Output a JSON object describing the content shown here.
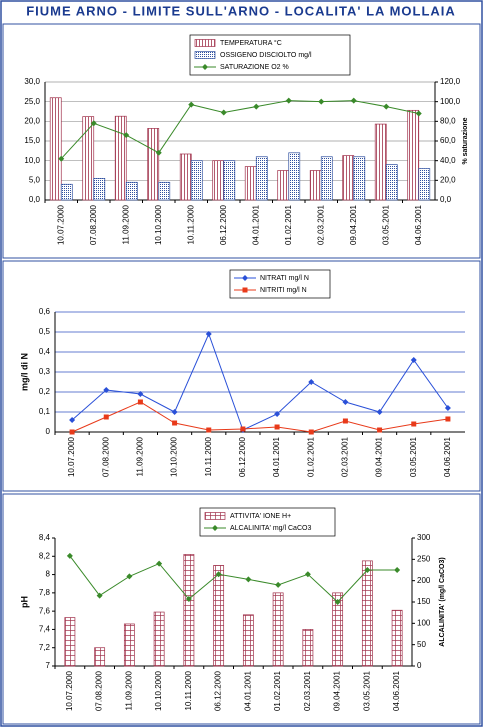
{
  "title": "FIUME ARNO - LIMITE SULL'ARNO - LOCALITA' LA MOLLAIA",
  "chart_data": [
    {
      "type": "combo",
      "categories": [
        "10.07.2000",
        "07.08.2000",
        "11.09.2000",
        "10.10.2000",
        "10.11.2000",
        "06.12.2000",
        "04.01.2001",
        "01.02.2001",
        "02.03.2001",
        "09.04.2001",
        "03.05.2001",
        "04.06.2001"
      ],
      "series": [
        {
          "name": "TEMPERATURA  °C",
          "type": "bar",
          "pattern": "hatch",
          "color": "#a0304a",
          "values": [
            26,
            21.2,
            21.3,
            18.2,
            11.7,
            10,
            8.5,
            7.5,
            7.5,
            11.3,
            19.3,
            22.8
          ]
        },
        {
          "name": "OSSIGENO DISCIOLTO  mg/l",
          "type": "bar",
          "pattern": "dots",
          "color": "#3050a0",
          "values": [
            4,
            5.5,
            4.5,
            4.5,
            10,
            10,
            11,
            12,
            11,
            11,
            9,
            8
          ]
        },
        {
          "name": "SATURAZIONE O2  %",
          "type": "line",
          "marker": "diamond",
          "color": "#3a8a2a",
          "axis": "y2",
          "values": [
            42,
            78,
            66,
            48,
            97,
            89,
            95,
            101,
            100,
            101,
            95,
            88
          ]
        }
      ],
      "ylim": [
        0,
        30
      ],
      "yticks": [
        {
          "value": 0,
          "label": "0,0"
        },
        {
          "value": 5,
          "label": "5,0"
        },
        {
          "value": 10,
          "label": "10,0"
        },
        {
          "value": 15,
          "label": "15,0"
        },
        {
          "value": 20,
          "label": "20,0"
        },
        {
          "value": 25,
          "label": "25,0"
        },
        {
          "value": 30,
          "label": "30,0"
        }
      ],
      "y2lim": [
        0,
        120
      ],
      "y2ticks": [
        {
          "value": 0,
          "label": "0,0"
        },
        {
          "value": 20,
          "label": "20,0"
        },
        {
          "value": 40,
          "label": "40,0"
        },
        {
          "value": 60,
          "label": "60,0"
        },
        {
          "value": 80,
          "label": "80,0"
        },
        {
          "value": 100,
          "label": "100,0"
        },
        {
          "value": 120,
          "label": "120,0"
        }
      ],
      "y2_label": "% saturazione",
      "grid": true,
      "grid_color": "#999999"
    },
    {
      "type": "line",
      "categories": [
        "10.07.2000",
        "07.08.2000",
        "11.09.2000",
        "10.10.2000",
        "10.11.2000",
        "06.12.2000",
        "04.01.2001",
        "01.02.2001",
        "02.03.2001",
        "09.04.2001",
        "03.05.2001",
        "04.06.2001"
      ],
      "series": [
        {
          "name": "NITRATI  mg/l N",
          "type": "line",
          "marker": "diamond",
          "color": "#2a50d8",
          "values": [
            0.06,
            0.21,
            0.19,
            0.1,
            0.49,
            0.01,
            0.09,
            0.25,
            0.15,
            0.1,
            0.36,
            0.12
          ]
        },
        {
          "name": "NITRITI  mg/l N",
          "type": "line",
          "marker": "square",
          "color": "#e83a1a",
          "values": [
            0,
            0.075,
            0.15,
            0.045,
            0.01,
            0.015,
            0.025,
            0,
            0.055,
            0.01,
            0.04,
            0.065
          ]
        }
      ],
      "ylim": [
        0,
        0.6
      ],
      "yticks": [
        0,
        {
          "value": 0.1,
          "label": "0,1"
        },
        {
          "value": 0.2,
          "label": "0,2"
        },
        {
          "value": 0.3,
          "label": "0,3"
        },
        {
          "value": 0.4,
          "label": "0,4"
        },
        {
          "value": 0.5,
          "label": "0,5"
        },
        {
          "value": 0.6,
          "label": "0,6"
        }
      ],
      "y_label": "mg/l di N",
      "grid": true,
      "grid_color": "#3050c0"
    },
    {
      "type": "combo",
      "categories": [
        "10.07.2000",
        "07.08.2000",
        "11.09.2000",
        "10.10.2000",
        "10.11.2000",
        "06.12.2000",
        "04.01.2001",
        "01.02.2001",
        "02.03.2001",
        "09.04.2001",
        "03.05.2001",
        "04.06.2001"
      ],
      "series": [
        {
          "name": "ATTIVITA' IONE H+",
          "type": "bar",
          "pattern": "grid",
          "color": "#a0304a",
          "values": [
            7.53,
            7.2,
            7.46,
            7.59,
            8.22,
            8.1,
            7.56,
            7.8,
            7.4,
            7.8,
            8.15,
            7.61
          ]
        },
        {
          "name": "ALCALINITA' mg/l CaCO3",
          "type": "line",
          "marker": "diamond",
          "color": "#3a8a2a",
          "axis": "y2",
          "values": [
            258,
            165,
            210,
            240,
            157,
            215,
            203,
            190,
            215,
            150,
            225,
            225
          ]
        }
      ],
      "ylim": [
        7,
        8.4
      ],
      "yticks": [
        7,
        {
          "value": 7.2,
          "label": "7,2"
        },
        {
          "value": 7.4,
          "label": "7,4"
        },
        {
          "value": 7.6,
          "label": "7,6"
        },
        {
          "value": 7.8,
          "label": "7,8"
        },
        8,
        {
          "value": 8.2,
          "label": "8,2"
        },
        {
          "value": 8.4,
          "label": "8,4"
        }
      ],
      "y2lim": [
        0,
        300
      ],
      "y2ticks": [
        0,
        50,
        100,
        150,
        200,
        250,
        300
      ],
      "y_label": "pH",
      "y2_label": "ALCALINITA' (mg/l CaCO3)",
      "grid": false
    }
  ]
}
